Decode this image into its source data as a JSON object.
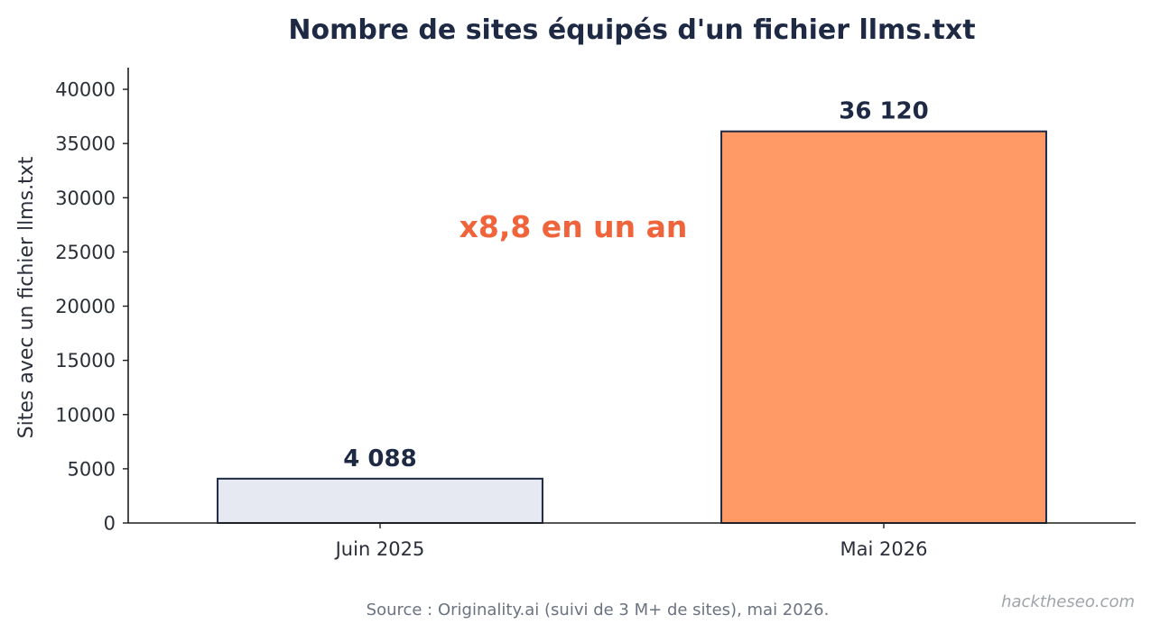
{
  "chart_data": {
    "type": "bar",
    "title": "Nombre de sites équipés d'un fichier llms.txt",
    "xlabel": "",
    "ylabel": "Sites avec un fichier llms.txt",
    "categories": [
      "Juin 2025",
      "Mai 2026"
    ],
    "values": [
      4088,
      36120
    ],
    "value_labels": [
      "4 088",
      "36 120"
    ],
    "bar_colors": [
      "#e6e9f2",
      "#ff9966"
    ],
    "bar_edge_color": "#1e2a44",
    "ylim": [
      0,
      42000
    ],
    "yticks": [
      0,
      5000,
      10000,
      15000,
      20000,
      25000,
      30000,
      35000,
      40000
    ],
    "ytick_labels": [
      "0",
      "5000",
      "10000",
      "15000",
      "20000",
      "25000",
      "30000",
      "35000",
      "40000"
    ],
    "annotation": "x8,8 en un an",
    "annotation_color": "#f0643c",
    "grid": false
  },
  "footer": {
    "source": "Source : Originality.ai (suivi de 3 M+ de sites), mai 2026.",
    "watermark": "hacktheseo.com"
  }
}
